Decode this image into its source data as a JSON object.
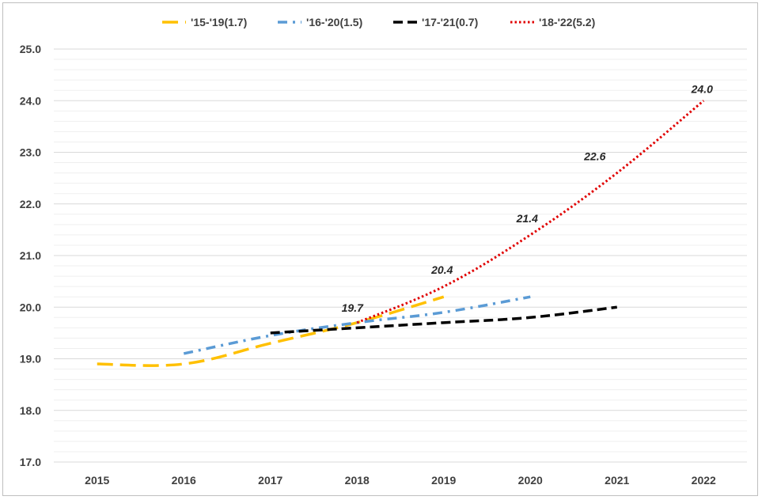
{
  "chart_data": {
    "type": "line",
    "title": "",
    "xlabel": "",
    "ylabel": "",
    "x": [
      2015,
      2016,
      2017,
      2018,
      2019,
      2020,
      2021,
      2022
    ],
    "x_tick_labels": [
      "2015",
      "2016",
      "2017",
      "2018",
      "2019",
      "2020",
      "2021",
      "2022"
    ],
    "ylim": [
      17.0,
      25.0
    ],
    "y_ticks": [
      17.0,
      18.0,
      19.0,
      20.0,
      21.0,
      22.0,
      23.0,
      24.0,
      25.0
    ],
    "y_tick_labels": [
      "17.0",
      "18.0",
      "19.0",
      "20.0",
      "21.0",
      "22.0",
      "23.0",
      "24.0",
      "25.0"
    ],
    "grid": true,
    "legend_position": "top",
    "series": [
      {
        "name": "'15-'19(1.7)",
        "color": "#FFC000",
        "style": "long-dash",
        "points": [
          [
            2015,
            18.9
          ],
          [
            2016,
            18.9
          ],
          [
            2017,
            19.3
          ],
          [
            2018,
            19.7
          ],
          [
            2019,
            20.2
          ]
        ]
      },
      {
        "name": "'16-'20(1.5)",
        "color": "#5B9BD5",
        "style": "dash-dot",
        "points": [
          [
            2016,
            19.1
          ],
          [
            2017,
            19.45
          ],
          [
            2018,
            19.7
          ],
          [
            2019,
            19.9
          ],
          [
            2020,
            20.2
          ]
        ]
      },
      {
        "name": "'17-'21(0.7)",
        "color": "#000000",
        "style": "dash",
        "points": [
          [
            2017,
            19.5
          ],
          [
            2018,
            19.6
          ],
          [
            2019,
            19.7
          ],
          [
            2020,
            19.8
          ],
          [
            2021,
            20.0
          ]
        ]
      },
      {
        "name": "'18-'22(5.2)",
        "color": "#E00000",
        "style": "dotted",
        "points": [
          [
            2018,
            19.7
          ],
          [
            2019,
            20.4
          ],
          [
            2020,
            21.4
          ],
          [
            2021,
            22.6
          ],
          [
            2022,
            24.0
          ]
        ],
        "data_labels": [
          {
            "x": 2018,
            "y": 19.7,
            "text": "19.7"
          },
          {
            "x": 2019,
            "y": 20.4,
            "text": "20.4"
          },
          {
            "x": 2020,
            "y": 21.4,
            "text": "21.4"
          },
          {
            "x": 2021,
            "y": 22.6,
            "text": "22.6"
          },
          {
            "x": 2022,
            "y": 24.0,
            "text": "24.0"
          }
        ]
      }
    ]
  }
}
